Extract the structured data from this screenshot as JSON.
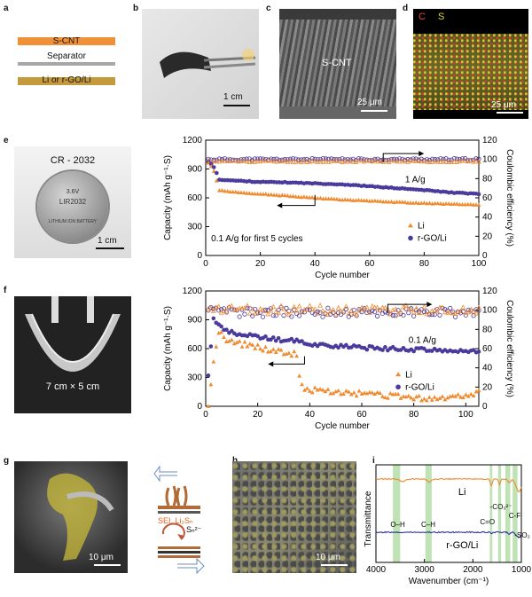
{
  "panel_labels": [
    "a",
    "b",
    "c",
    "d",
    "e",
    "f",
    "g",
    "h",
    "i"
  ],
  "panel_a": {
    "layers": [
      {
        "label": "S-CNT",
        "color": "#f0913a"
      },
      {
        "label": "Separator",
        "color": "#a7a7a7"
      },
      {
        "label": "Li or r-GO/Li",
        "color": "#c59a3c"
      }
    ]
  },
  "panel_b": {
    "scale_bar": "1 cm"
  },
  "panel_c": {
    "label": "S-CNT",
    "scale_bar": "25 μm"
  },
  "panel_d": {
    "legend_c": "C",
    "legend_s": "S",
    "color_c": "#e8413a",
    "color_s": "#e6d23a",
    "scale_bar": "25 μm"
  },
  "panel_e_photo": {
    "caption": "CR - 2032",
    "coin_text_1": "3.6V",
    "coin_text_2": "LIR2032",
    "coin_text_3": "LITHIUM ION BATTERY",
    "scale_bar": "1 cm"
  },
  "panel_f_photo": {
    "caption": "7 cm × 5 cm"
  },
  "panel_g": {
    "scale_bar": "10 μm",
    "sei_label": "SEI, Li₂Sₙ",
    "sn_label": "Sₙ²⁻"
  },
  "panel_h": {
    "scale_bar": "10 μm"
  },
  "chart_data": [
    {
      "type": "scatter",
      "panel": "e",
      "xlabel": "Cycle number",
      "ylabel": "Capacity (mAh g⁻¹·S)",
      "y2label": "Coulombic efficiency (%)",
      "xlim": [
        0,
        100
      ],
      "ylim": [
        0,
        1200
      ],
      "y2lim": [
        0,
        120
      ],
      "xticks": [
        "0",
        "20",
        "40",
        "60",
        "80",
        "100"
      ],
      "yticks": [
        "0",
        "300",
        "600",
        "900",
        "1200"
      ],
      "y2ticks": [
        "0",
        "20",
        "40",
        "60",
        "80",
        "100",
        "120"
      ],
      "annotations": [
        "1 A/g",
        "0.1 A/g for first 5 cycles"
      ],
      "legend": [
        "Li",
        "r-GO/Li"
      ],
      "colors": {
        "Li": "#f08a2e",
        "rGO": "#4a3a9c"
      },
      "capacity_Li_points": [
        [
          1,
          960
        ],
        [
          2,
          930
        ],
        [
          3,
          880
        ],
        [
          5,
          680
        ],
        [
          10,
          660
        ],
        [
          20,
          640
        ],
        [
          30,
          620
        ],
        [
          40,
          600
        ],
        [
          50,
          580
        ],
        [
          60,
          570
        ],
        [
          70,
          555
        ],
        [
          80,
          545
        ],
        [
          90,
          535
        ],
        [
          100,
          525
        ]
      ],
      "capacity_rGO_points": [
        [
          1,
          970
        ],
        [
          2,
          950
        ],
        [
          3,
          920
        ],
        [
          5,
          790
        ],
        [
          10,
          780
        ],
        [
          20,
          765
        ],
        [
          30,
          760
        ],
        [
          40,
          750
        ],
        [
          50,
          740
        ],
        [
          60,
          720
        ],
        [
          70,
          700
        ],
        [
          80,
          680
        ],
        [
          90,
          655
        ],
        [
          100,
          640
        ]
      ],
      "ce_Li": 98,
      "ce_rGO": 100
    },
    {
      "type": "scatter",
      "panel": "f",
      "xlabel": "Cycle number",
      "ylabel": "Capacity (mAh g⁻¹·S)",
      "y2label": "Coulombic efficiency (%)",
      "xlim": [
        0,
        105
      ],
      "ylim": [
        0,
        1200
      ],
      "y2lim": [
        0,
        120
      ],
      "xticks": [
        "0",
        "20",
        "40",
        "60",
        "80",
        "100"
      ],
      "yticks": [
        "0",
        "300",
        "600",
        "900",
        "1200"
      ],
      "y2ticks": [
        "0",
        "20",
        "40",
        "60",
        "80",
        "100",
        "120"
      ],
      "annotations": [
        "0.1 A/g"
      ],
      "legend": [
        "Li",
        "r-GO/Li"
      ],
      "colors": {
        "Li": "#f08a2e",
        "rGO": "#4a3a9c"
      },
      "capacity_Li_points": [
        [
          1,
          20
        ],
        [
          3,
          450
        ],
        [
          5,
          780
        ],
        [
          8,
          700
        ],
        [
          12,
          660
        ],
        [
          20,
          610
        ],
        [
          28,
          580
        ],
        [
          35,
          540
        ],
        [
          36,
          320
        ],
        [
          38,
          180
        ],
        [
          45,
          160
        ],
        [
          55,
          140
        ],
        [
          65,
          120
        ],
        [
          75,
          100
        ],
        [
          85,
          80
        ],
        [
          95,
          90
        ],
        [
          105,
          140
        ]
      ],
      "capacity_rGO_points": [
        [
          1,
          310
        ],
        [
          3,
          900
        ],
        [
          5,
          850
        ],
        [
          8,
          780
        ],
        [
          15,
          740
        ],
        [
          25,
          700
        ],
        [
          35,
          680
        ],
        [
          40,
          650
        ],
        [
          50,
          630
        ],
        [
          60,
          610
        ],
        [
          70,
          600
        ],
        [
          80,
          590
        ],
        [
          90,
          580
        ],
        [
          105,
          570
        ]
      ],
      "ce_Li": 100,
      "ce_rGO": 98
    },
    {
      "type": "line",
      "panel": "i",
      "xlabel": "Wavenumber (cm⁻¹)",
      "ylabel": "Transmittance",
      "xlim": [
        4000,
        1000
      ],
      "xticks": [
        "4000",
        "3000",
        "2000",
        "1000"
      ],
      "series": [
        {
          "name": "Li",
          "color": "#f08a2e"
        },
        {
          "name": "r-GO/Li",
          "color": "#2f2fa5"
        }
      ],
      "peak_labels": [
        "O–H",
        "C–H",
        "C=O",
        "-CO₃²⁻",
        "C-F",
        "-SO₂"
      ],
      "highlight_bands": [
        [
          3650,
          3500
        ],
        [
          2980,
          2850
        ],
        [
          1650,
          1600
        ],
        [
          1480,
          1420
        ],
        [
          1330,
          1230
        ],
        [
          1180,
          1080
        ]
      ]
    }
  ]
}
